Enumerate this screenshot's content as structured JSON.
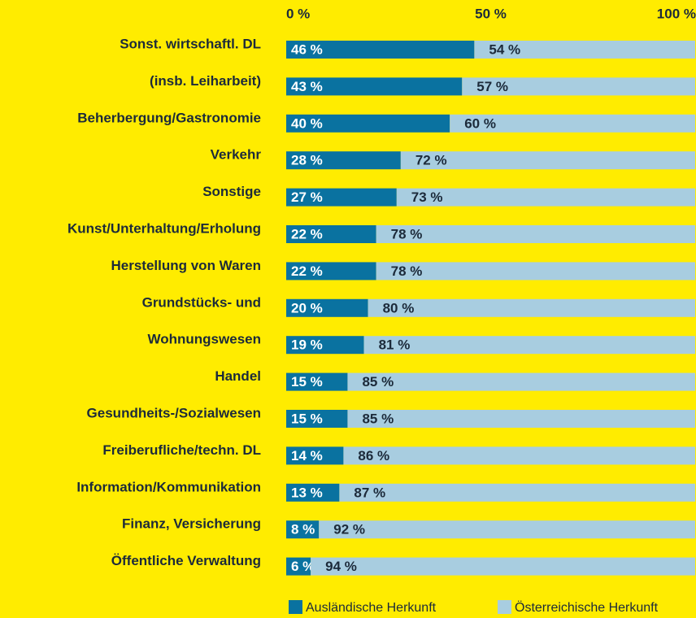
{
  "chart_data": {
    "type": "stacked-barh",
    "categories": [
      "Sonst. wirtschaftl. DL",
      "(insb. Leiharbeit)",
      "Beherbergung/Gastronomie",
      "Verkehr",
      "Sonstige",
      "Kunst/Unterhaltung/Erholung",
      "Herstellung von Waren",
      "Grundstücks- und",
      "Wohnungswesen",
      "Handel",
      "Gesundheits-/Sozialwesen",
      "Freiberufliche/techn. DL",
      "Information/Kommunikation",
      "Finanz, Versicherung",
      "Öffentliche Verwaltung"
    ],
    "series": [
      {
        "name": "Ausländische Herkunft",
        "color": "#0a72a0",
        "values": [
          46,
          43,
          40,
          28,
          27,
          22,
          22,
          20,
          19,
          15,
          15,
          14,
          13,
          8,
          6
        ],
        "value_labels": [
          "46 %",
          "43 %",
          "40 %",
          "28 %",
          "27 %",
          "22 %",
          "22 %",
          "20 %",
          "19 %",
          "15 %",
          "15 %",
          "14 %",
          "13 %",
          "8 %",
          "6 %"
        ]
      },
      {
        "name": "Österreichische Herkunft",
        "color": "#a8cde0",
        "values": [
          54,
          57,
          60,
          72,
          73,
          78,
          78,
          80,
          81,
          85,
          85,
          86,
          87,
          92,
          94
        ],
        "value_labels": [
          "54 %",
          "57 %",
          "60 %",
          "72 %",
          "73 %",
          "78 %",
          "78 %",
          "80 %",
          "81 %",
          "85 %",
          "85 %",
          "86 %",
          "87 %",
          "92 %",
          "94 %"
        ]
      }
    ],
    "xlim": [
      0,
      100
    ],
    "xticks": [
      {
        "value": 0,
        "label": "0 %"
      },
      {
        "value": 50,
        "label": "50 %"
      },
      {
        "value": 100,
        "label": "100 %"
      }
    ],
    "legend": "bottom"
  }
}
